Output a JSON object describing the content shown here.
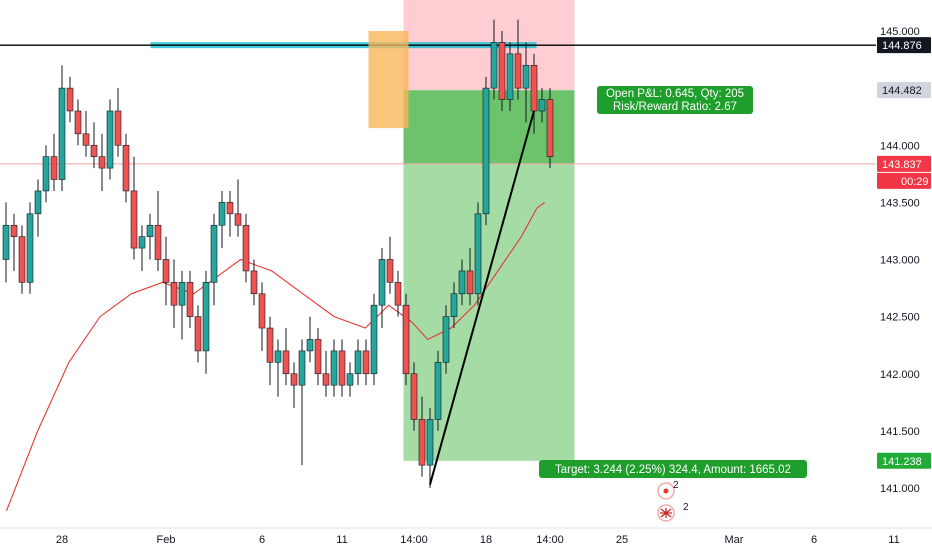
{
  "chart_data": {
    "type": "candlestick",
    "instrument_note": "",
    "colors": {
      "up": "#26a69a",
      "down": "#ef5350",
      "wick": "#131722",
      "moving_average": "#e53935",
      "current_price_line": "#f7a8a8",
      "resistance_line": "#000000",
      "resistance_zone": "#00bcd4",
      "consolidation_box": "#f8b759",
      "trendline": "#000000",
      "stop_zone": "#ffcdd2",
      "profit_zone": "#a5dba5",
      "profit_zone_filled": "#6cc36c",
      "callout_bg": "#1e9e2a"
    },
    "y_axis": {
      "ylim": [
        140.7,
        145.2
      ],
      "ticks": [
        "145.000",
        "144.500",
        "144.000",
        "143.500",
        "143.000",
        "142.500",
        "142.000",
        "141.500",
        "141.000"
      ],
      "tick_values": [
        145.0,
        144.5,
        144.0,
        143.5,
        143.0,
        142.5,
        142.0,
        141.5,
        141.0
      ]
    },
    "x_axis": {
      "ticks": [
        "28",
        "Feb",
        "6",
        "11",
        "14:00",
        "18",
        "14:00",
        "25",
        "Mar",
        "6",
        "11"
      ],
      "tick_index": [
        7,
        20,
        32,
        42,
        51,
        60,
        68,
        77,
        91,
        101,
        111
      ]
    },
    "price_badges": [
      {
        "label": "144.876",
        "value": 144.876,
        "style": "black"
      },
      {
        "label": "144.482",
        "value": 144.482,
        "style": "gray"
      },
      {
        "label": "143.837",
        "value": 143.837,
        "style": "red"
      },
      {
        "label": "00:29",
        "value": null,
        "style": "red-sub"
      },
      {
        "label": "141.238",
        "value": 141.238,
        "style": "green"
      }
    ],
    "resistance_level": 144.876,
    "current_price": 143.837,
    "candles": [
      {
        "o": 143.0,
        "h": 143.5,
        "l": 142.8,
        "c": 143.3
      },
      {
        "o": 143.3,
        "h": 143.4,
        "l": 142.9,
        "c": 143.2
      },
      {
        "o": 143.2,
        "h": 143.3,
        "l": 142.7,
        "c": 142.8
      },
      {
        "o": 142.8,
        "h": 143.5,
        "l": 142.7,
        "c": 143.4
      },
      {
        "o": 143.4,
        "h": 143.7,
        "l": 143.2,
        "c": 143.6
      },
      {
        "o": 143.6,
        "h": 144.0,
        "l": 143.5,
        "c": 143.9
      },
      {
        "o": 143.9,
        "h": 144.1,
        "l": 143.6,
        "c": 143.7
      },
      {
        "o": 143.7,
        "h": 144.7,
        "l": 143.6,
        "c": 144.5
      },
      {
        "o": 144.5,
        "h": 144.6,
        "l": 144.2,
        "c": 144.3
      },
      {
        "o": 144.3,
        "h": 144.4,
        "l": 144.0,
        "c": 144.1
      },
      {
        "o": 144.1,
        "h": 144.3,
        "l": 143.9,
        "c": 144.0
      },
      {
        "o": 144.0,
        "h": 144.2,
        "l": 143.8,
        "c": 143.9
      },
      {
        "o": 143.9,
        "h": 144.1,
        "l": 143.6,
        "c": 143.8
      },
      {
        "o": 143.8,
        "h": 144.4,
        "l": 143.7,
        "c": 144.3
      },
      {
        "o": 144.3,
        "h": 144.5,
        "l": 143.9,
        "c": 144.0
      },
      {
        "o": 144.0,
        "h": 144.1,
        "l": 143.5,
        "c": 143.6
      },
      {
        "o": 143.6,
        "h": 143.9,
        "l": 143.0,
        "c": 143.1
      },
      {
        "o": 143.1,
        "h": 143.3,
        "l": 142.9,
        "c": 143.2
      },
      {
        "o": 143.2,
        "h": 143.4,
        "l": 143.0,
        "c": 143.3
      },
      {
        "o": 143.3,
        "h": 143.6,
        "l": 142.9,
        "c": 143.0
      },
      {
        "o": 143.0,
        "h": 143.2,
        "l": 142.6,
        "c": 142.8
      },
      {
        "o": 142.8,
        "h": 143.0,
        "l": 142.4,
        "c": 142.6
      },
      {
        "o": 142.6,
        "h": 142.9,
        "l": 142.3,
        "c": 142.8
      },
      {
        "o": 142.8,
        "h": 142.9,
        "l": 142.4,
        "c": 142.5
      },
      {
        "o": 142.5,
        "h": 142.6,
        "l": 142.1,
        "c": 142.2
      },
      {
        "o": 142.2,
        "h": 142.9,
        "l": 142.0,
        "c": 142.8
      },
      {
        "o": 142.8,
        "h": 143.4,
        "l": 142.6,
        "c": 143.3
      },
      {
        "o": 143.3,
        "h": 143.6,
        "l": 143.1,
        "c": 143.5
      },
      {
        "o": 143.5,
        "h": 143.6,
        "l": 143.2,
        "c": 143.4
      },
      {
        "o": 143.4,
        "h": 143.7,
        "l": 143.2,
        "c": 143.3
      },
      {
        "o": 143.3,
        "h": 143.4,
        "l": 142.8,
        "c": 142.9
      },
      {
        "o": 142.9,
        "h": 143.0,
        "l": 142.6,
        "c": 142.7
      },
      {
        "o": 142.7,
        "h": 142.8,
        "l": 142.2,
        "c": 142.4
      },
      {
        "o": 142.4,
        "h": 142.5,
        "l": 141.9,
        "c": 142.1
      },
      {
        "o": 142.1,
        "h": 142.3,
        "l": 141.8,
        "c": 142.2
      },
      {
        "o": 142.2,
        "h": 142.4,
        "l": 141.9,
        "c": 142.0
      },
      {
        "o": 142.0,
        "h": 142.1,
        "l": 141.7,
        "c": 141.9
      },
      {
        "o": 141.9,
        "h": 142.3,
        "l": 141.2,
        "c": 142.2
      },
      {
        "o": 142.2,
        "h": 142.5,
        "l": 142.1,
        "c": 142.3
      },
      {
        "o": 142.3,
        "h": 142.4,
        "l": 141.9,
        "c": 142.0
      },
      {
        "o": 142.0,
        "h": 142.2,
        "l": 141.8,
        "c": 141.9
      },
      {
        "o": 141.9,
        "h": 142.3,
        "l": 141.8,
        "c": 142.2
      },
      {
        "o": 142.2,
        "h": 142.3,
        "l": 141.8,
        "c": 141.9
      },
      {
        "o": 141.9,
        "h": 142.1,
        "l": 141.8,
        "c": 142.0
      },
      {
        "o": 142.0,
        "h": 142.3,
        "l": 141.9,
        "c": 142.2
      },
      {
        "o": 142.2,
        "h": 142.3,
        "l": 141.9,
        "c": 142.0
      },
      {
        "o": 142.0,
        "h": 142.7,
        "l": 141.9,
        "c": 142.6
      },
      {
        "o": 142.6,
        "h": 143.1,
        "l": 142.4,
        "c": 143.0
      },
      {
        "o": 143.0,
        "h": 143.2,
        "l": 142.7,
        "c": 142.8
      },
      {
        "o": 142.8,
        "h": 142.9,
        "l": 142.5,
        "c": 142.6
      },
      {
        "o": 142.6,
        "h": 142.7,
        "l": 141.9,
        "c": 142.0
      },
      {
        "o": 142.0,
        "h": 142.1,
        "l": 141.5,
        "c": 141.6
      },
      {
        "o": 141.6,
        "h": 141.8,
        "l": 141.1,
        "c": 141.2
      },
      {
        "o": 141.2,
        "h": 141.7,
        "l": 141.0,
        "c": 141.6
      },
      {
        "o": 141.6,
        "h": 142.2,
        "l": 141.5,
        "c": 142.1
      },
      {
        "o": 142.1,
        "h": 142.6,
        "l": 142.0,
        "c": 142.5
      },
      {
        "o": 142.5,
        "h": 142.8,
        "l": 142.4,
        "c": 142.7
      },
      {
        "o": 142.7,
        "h": 143.0,
        "l": 142.6,
        "c": 142.9
      },
      {
        "o": 142.9,
        "h": 143.1,
        "l": 142.6,
        "c": 142.7
      },
      {
        "o": 142.7,
        "h": 143.5,
        "l": 142.6,
        "c": 143.4
      },
      {
        "o": 143.4,
        "h": 144.6,
        "l": 143.3,
        "c": 144.5
      },
      {
        "o": 144.5,
        "h": 145.1,
        "l": 144.4,
        "c": 144.9
      },
      {
        "o": 144.9,
        "h": 145.0,
        "l": 144.3,
        "c": 144.4
      },
      {
        "o": 144.4,
        "h": 144.9,
        "l": 144.3,
        "c": 144.8
      },
      {
        "o": 144.8,
        "h": 145.1,
        "l": 144.4,
        "c": 144.5
      },
      {
        "o": 144.5,
        "h": 144.9,
        "l": 144.2,
        "c": 144.7
      },
      {
        "o": 144.7,
        "h": 144.8,
        "l": 144.1,
        "c": 144.3
      },
      {
        "o": 144.3,
        "h": 144.5,
        "l": 144.2,
        "c": 144.4
      },
      {
        "o": 144.4,
        "h": 144.5,
        "l": 143.8,
        "c": 143.9
      }
    ],
    "moving_average": [
      {
        "i": 0,
        "v": 140.8
      },
      {
        "i": 4,
        "v": 141.5
      },
      {
        "i": 8,
        "v": 142.1
      },
      {
        "i": 12,
        "v": 142.5
      },
      {
        "i": 16,
        "v": 142.7
      },
      {
        "i": 20,
        "v": 142.8
      },
      {
        "i": 24,
        "v": 142.7
      },
      {
        "i": 28,
        "v": 142.9
      },
      {
        "i": 30,
        "v": 143.0
      },
      {
        "i": 34,
        "v": 142.9
      },
      {
        "i": 38,
        "v": 142.7
      },
      {
        "i": 42,
        "v": 142.5
      },
      {
        "i": 46,
        "v": 142.4
      },
      {
        "i": 49,
        "v": 142.6
      },
      {
        "i": 52,
        "v": 142.45
      },
      {
        "i": 54,
        "v": 142.3
      },
      {
        "i": 57,
        "v": 142.4
      },
      {
        "i": 60,
        "v": 142.6
      },
      {
        "i": 63,
        "v": 142.9
      },
      {
        "i": 66,
        "v": 143.2
      },
      {
        "i": 68,
        "v": 143.45
      },
      {
        "i": 69,
        "v": 143.5
      }
    ],
    "trendline": [
      {
        "i": 53,
        "v": 141.03
      },
      {
        "i": 66,
        "v": 144.3
      }
    ],
    "consolidation_box": {
      "i0": 61,
      "i1": 67,
      "top": 145.0,
      "bottom": 144.15
    },
    "resistance_zone": {
      "i0": 17,
      "i1": 88
    },
    "position": {
      "i0": 67,
      "i1": 95,
      "stop": 145.2,
      "entry": 144.482,
      "current": 143.837,
      "target": 141.238,
      "pnl_callout": [
        "Open P&L: 0.645, Qty: 205",
        "Risk/Reward Ratio: 2.67"
      ],
      "target_callout": "Target: 3.244 (2.25%) 324.4, Amount: 1665.02"
    },
    "events": [
      {
        "i": 81,
        "count": "2"
      },
      {
        "i": 81,
        "count": "2"
      }
    ]
  }
}
